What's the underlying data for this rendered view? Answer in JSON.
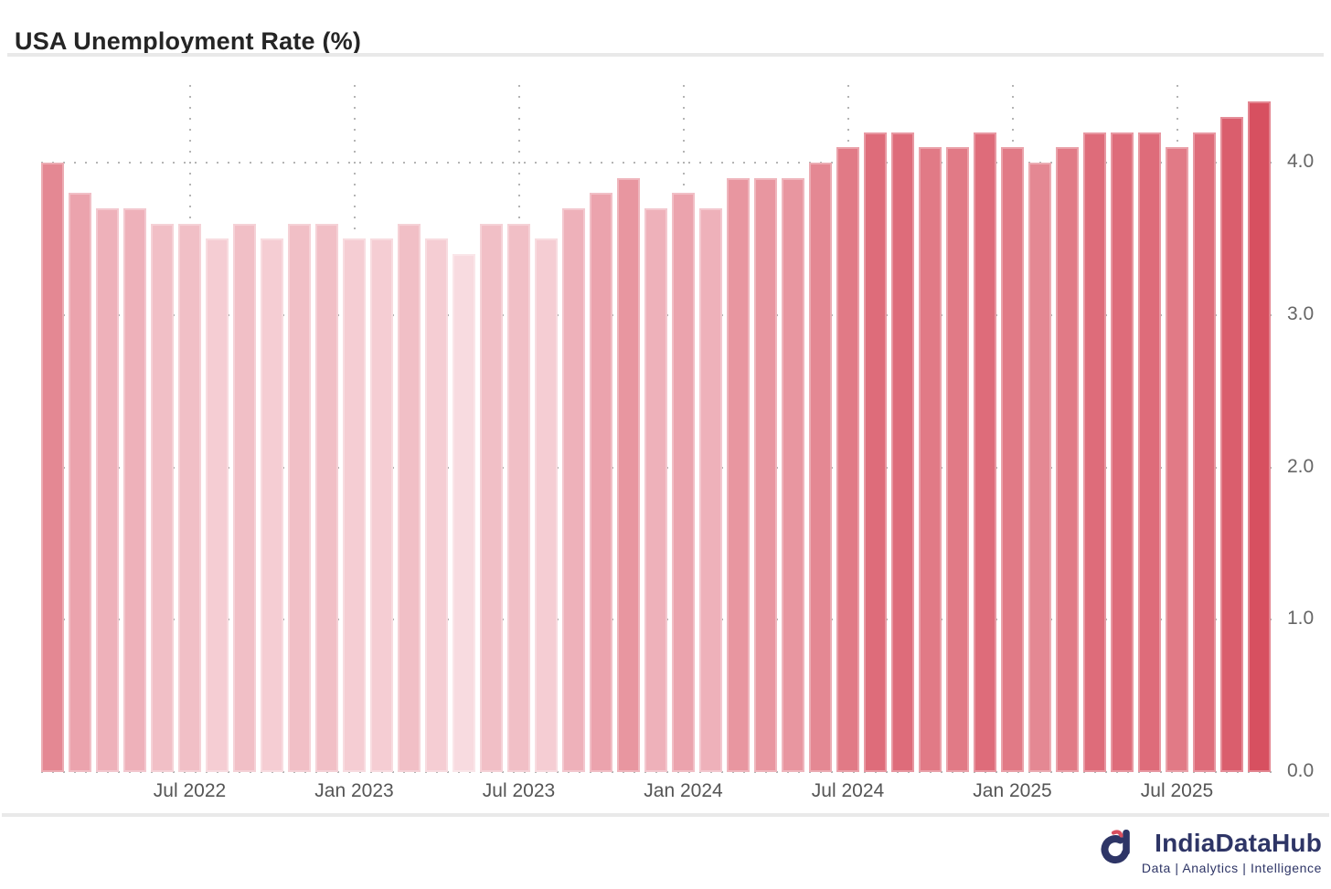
{
  "title": "USA Unemployment Rate (%)",
  "chart_data": {
    "type": "bar",
    "title": "USA Unemployment Rate (%)",
    "values": [
      4.0,
      3.8,
      3.7,
      3.7,
      3.6,
      3.6,
      3.5,
      3.6,
      3.5,
      3.6,
      3.6,
      3.5,
      3.5,
      3.6,
      3.5,
      3.4,
      3.6,
      3.6,
      3.5,
      3.7,
      3.8,
      3.9,
      3.7,
      3.8,
      3.7,
      3.9,
      3.9,
      3.9,
      4.0,
      4.1,
      4.2,
      4.2,
      4.1,
      4.1,
      4.2,
      4.1,
      4.0,
      4.1,
      4.2,
      4.2,
      4.2,
      4.1,
      4.2,
      4.3,
      4.4
    ],
    "x_tick_labels": [
      "Jul 2022",
      "Jan 2023",
      "Jul 2023",
      "Jan 2024",
      "Jul 2024",
      "Jan 2025",
      "Jul 2025"
    ],
    "x_tick_bar_index": [
      5,
      11,
      17,
      23,
      29,
      35,
      41
    ],
    "y_tick_labels": [
      "0.0",
      "1.0",
      "2.0",
      "3.0",
      "4.0"
    ],
    "ylim": [
      0.0,
      4.45
    ],
    "grid": "dotted",
    "legend": "none",
    "color_scale": {
      "min_value": 3.4,
      "max_value": 4.4,
      "min_color": "#f8dbe0",
      "max_color": "#d75060"
    }
  },
  "footer": {
    "brand": "IndiaDataHub",
    "tagline": "Data | Analytics | Intelligence",
    "brand_color": "#2e3566",
    "accent_color": "#d94f5f"
  }
}
